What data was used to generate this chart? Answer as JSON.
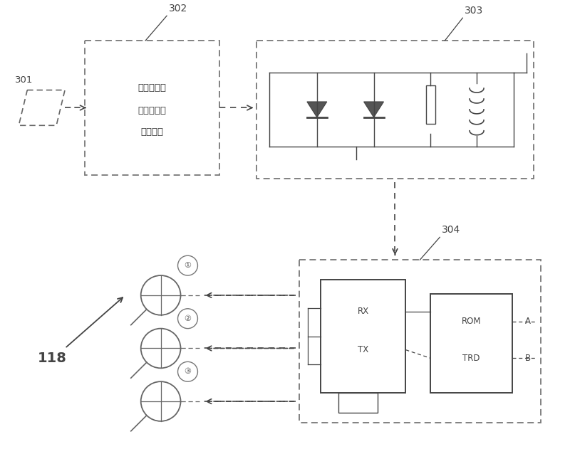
{
  "bg_color": "#ffffff",
  "line_color": "#555555",
  "dark_color": "#444444",
  "label_301": "301",
  "label_302": "302",
  "label_303": "303",
  "label_304": "304",
  "label_118": "118",
  "text_302_line1": "调度控制信",
  "text_302_line2": "号收发编码",
  "text_302_line3": "存储单元",
  "text_rx": "RX",
  "text_tx": "TX",
  "text_rom": "ROM",
  "text_trd": "TRD",
  "text_a": "A",
  "text_b": "B",
  "circle_labels": [
    "①",
    "②",
    "③"
  ]
}
